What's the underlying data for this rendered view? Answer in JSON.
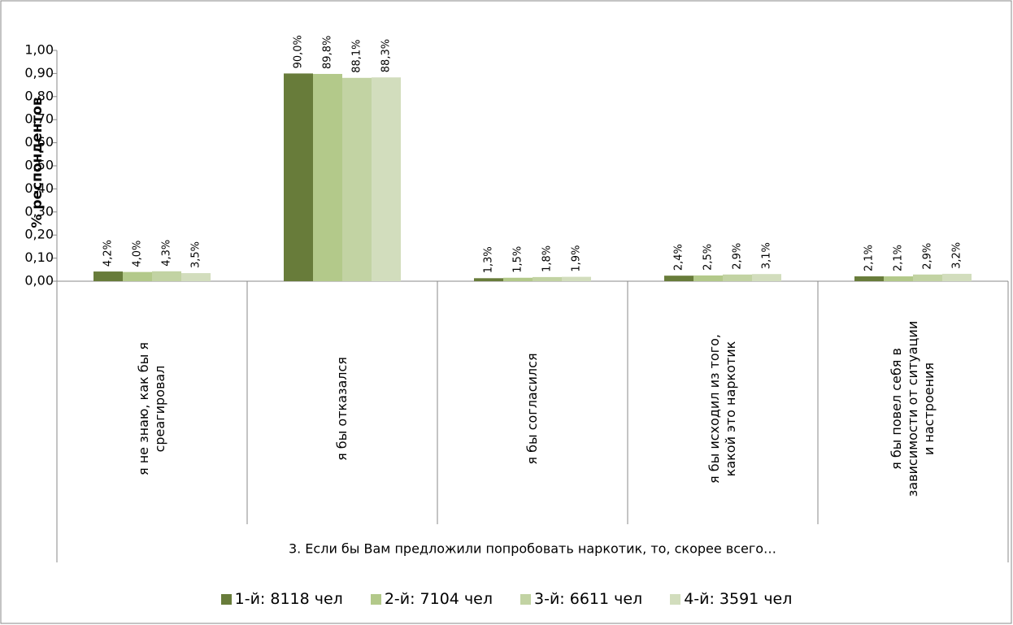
{
  "chart_data": {
    "type": "bar",
    "y_label": "% респондентов",
    "x_label": "3. Если бы Вам предложили попробовать наркотик, то, скорее всего…",
    "categories": [
      "я не знаю, как бы я среагировал",
      "я бы отказался",
      "я бы согласился",
      "я бы исходил из того, какой это наркотик",
      "я бы повел себя в зависимости от ситуации и настроения"
    ],
    "series": [
      {
        "name": "1-й: 8118 чел",
        "color": "#687c3a",
        "values": [
          0.042,
          0.9,
          0.013,
          0.024,
          0.021
        ],
        "value_labels": [
          "4,2%",
          "90,0%",
          "1,3%",
          "2,4%",
          "2,1%"
        ]
      },
      {
        "name": "2-й: 7104 чел",
        "color": "#b3c98a",
        "values": [
          0.04,
          0.898,
          0.015,
          0.025,
          0.021
        ],
        "value_labels": [
          "4,0%",
          "89,8%",
          "1,5%",
          "2,5%",
          "2,1%"
        ]
      },
      {
        "name": "3-й: 6611 чел",
        "color": "#c2d3a3",
        "values": [
          0.043,
          0.881,
          0.018,
          0.029,
          0.029
        ],
        "value_labels": [
          "4,3%",
          "88,1%",
          "1,8%",
          "2,9%",
          "2,9%"
        ]
      },
      {
        "name": "4-й: 3591 чел",
        "color": "#d2ddbd",
        "values": [
          0.035,
          0.883,
          0.019,
          0.031,
          0.032
        ],
        "value_labels": [
          "3,5%",
          "88,3%",
          "1,9%",
          "3,1%",
          "3,2%"
        ]
      }
    ],
    "ylim": [
      0,
      1
    ],
    "yticks": [
      {
        "value": 0,
        "label": "0,00"
      },
      {
        "value": 0.1,
        "label": "0,10"
      },
      {
        "value": 0.2,
        "label": "0,20"
      },
      {
        "value": 0.3,
        "label": "0,30"
      },
      {
        "value": 0.4,
        "label": "0,40"
      },
      {
        "value": 0.5,
        "label": "0,50"
      },
      {
        "value": 0.6,
        "label": "0,60"
      },
      {
        "value": 0.7,
        "label": "0,70"
      },
      {
        "value": 0.8,
        "label": "0,80"
      },
      {
        "value": 0.9,
        "label": "0,90"
      },
      {
        "value": 1,
        "label": "1,00"
      }
    ],
    "legend": "bottom"
  }
}
